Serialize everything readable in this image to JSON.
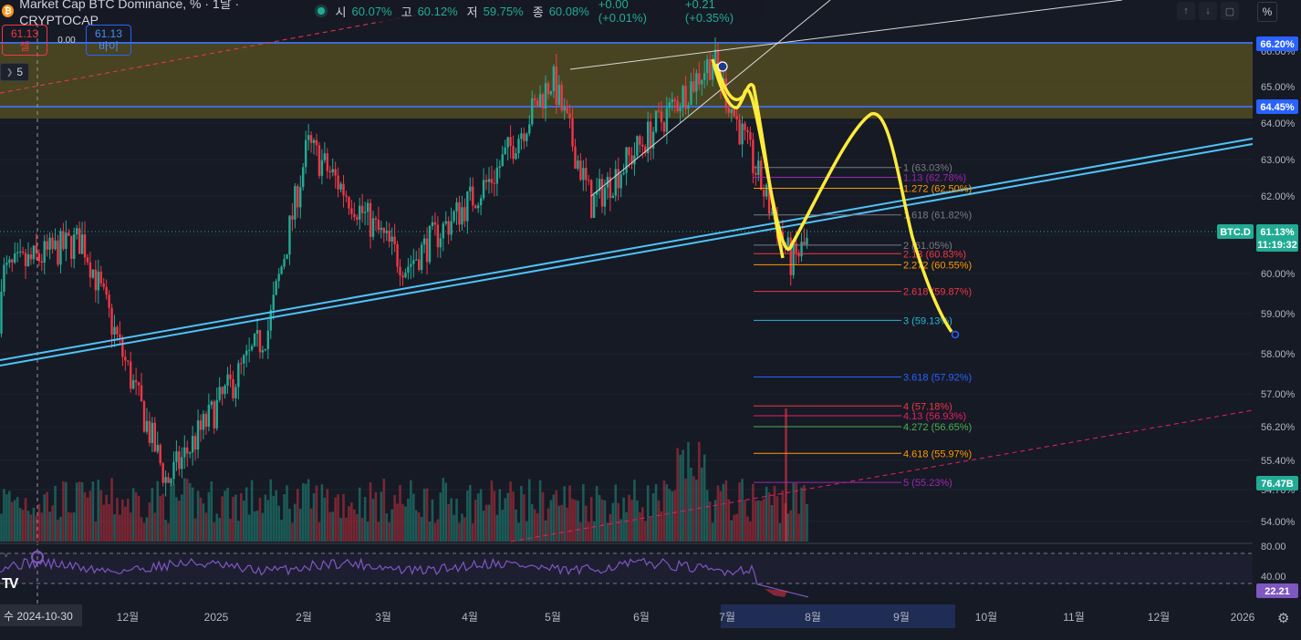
{
  "header": {
    "coin_glyph": "₿",
    "title": "Market Cap BTC Dominance, % · 1날 · CRYPTOCAP",
    "open_label": "시",
    "open_value": "60.07%",
    "high_label": "고",
    "high_value": "60.12%",
    "low_label": "저",
    "low_value": "59.75%",
    "close_label": "종",
    "close_value": "60.08%",
    "change": "+0.00 (+0.01%)",
    "change2": "+0.21 (+0.35%)"
  },
  "trade": {
    "sell_price": "61.13",
    "sell_label": "셀",
    "spread": "0.00",
    "buy_price": "61.13",
    "buy_label": "바이"
  },
  "layers_badge": "5",
  "percent_toggle": "%",
  "price_axis": {
    "ticks": [
      "66.00%",
      "65.00%",
      "64.00%",
      "63.00%",
      "62.00%",
      "61.00%",
      "60.00%",
      "59.00%",
      "58.00%",
      "57.00%",
      "56.20%",
      "55.40%",
      "54.70%",
      "54.00%"
    ],
    "tag_top": "66.20%",
    "tag_mid": "64.45%",
    "symbol_tag": "BTC.D",
    "current": "61.13%",
    "countdown": "11:19:32",
    "volume_tag": "76.47B",
    "rsi_ticks": [
      "80.00",
      "40.00"
    ],
    "rsi_value": "22.21"
  },
  "time_axis": {
    "cursor_label": "수 2024-10-30",
    "labels": [
      "12월",
      "2025",
      "2월",
      "3월",
      "4월",
      "5월",
      "6월",
      "7월",
      "8월",
      "9월",
      "10월",
      "11월",
      "12월",
      "2026"
    ]
  },
  "fib_levels": [
    {
      "label": "1 (63.03%)",
      "color": "#787b86"
    },
    {
      "label": "1.13 (62.78%)",
      "color": "#9c27b0"
    },
    {
      "label": "1.272 (62.50%)",
      "color": "#ff9800"
    },
    {
      "label": "1.618 (61.82%)",
      "color": "#787b86"
    },
    {
      "label": "2 (61.05%)",
      "color": "#787b86"
    },
    {
      "label": "2.13 (60.83%)",
      "color": "#f23645"
    },
    {
      "label": "2.272 (60.55%)",
      "color": "#ff9800"
    },
    {
      "label": "2.618 (59.87%)",
      "color": "#f23645"
    },
    {
      "label": "3 (59.13%)",
      "color": "#22b7d1"
    },
    {
      "label": "3.618 (57.92%)",
      "color": "#2962ff"
    },
    {
      "label": "4 (57.18%)",
      "color": "#f23645"
    },
    {
      "label": "4.13 (56.93%)",
      "color": "#e91e63"
    },
    {
      "label": "4.272 (56.65%)",
      "color": "#4caf50"
    },
    {
      "label": "4.618 (55.97%)",
      "color": "#ff9800"
    },
    {
      "label": "5 (55.23%)",
      "color": "#9c27b0"
    }
  ],
  "colors": {
    "up": "#22ab94",
    "down": "#f23645",
    "zone": "#5a5320",
    "hline": "#3d6bd6",
    "channel": "#4fc3f7",
    "projection": "#ffeb3b",
    "rsi": "#7e57c2",
    "background": "#161a25"
  },
  "chart_data": {
    "type": "candlestick",
    "title": "Market Cap BTC Dominance, %",
    "timeframe": "1D",
    "ylabel": "%",
    "ylim": [
      53.6,
      66.6
    ],
    "x_range": [
      "2024-10-30",
      "2026-01-01"
    ],
    "key_points": [
      {
        "date": "2024-11-15",
        "value": 61.2
      },
      {
        "date": "2024-12-15",
        "value": 55.0
      },
      {
        "date": "2025-01-20",
        "value": 58.9
      },
      {
        "date": "2025-02-03",
        "value": 63.6
      },
      {
        "date": "2025-03-10",
        "value": 60.5
      },
      {
        "date": "2025-04-10",
        "value": 62.8
      },
      {
        "date": "2025-05-01",
        "value": 65.3
      },
      {
        "date": "2025-05-15",
        "value": 62.1
      },
      {
        "date": "2025-06-27",
        "value": 65.8
      },
      {
        "date": "2025-07-25",
        "value": 60.6
      },
      {
        "date": "2025-07-31",
        "value": 61.13
      }
    ],
    "last_close": 61.13,
    "horizontal_levels": [
      66.2,
      64.45
    ],
    "projection_path": [
      {
        "date": "2025-06-30",
        "value": 65.6
      },
      {
        "date": "2025-07-12",
        "value": 65.2
      },
      {
        "date": "2025-07-30",
        "value": 60.7
      },
      {
        "date": "2025-09-03",
        "value": 64.2
      },
      {
        "date": "2025-09-25",
        "value": 58.6
      }
    ],
    "rsi": {
      "levels": [
        80,
        40
      ],
      "last": 22.21
    },
    "volume_last": "76.47B"
  }
}
